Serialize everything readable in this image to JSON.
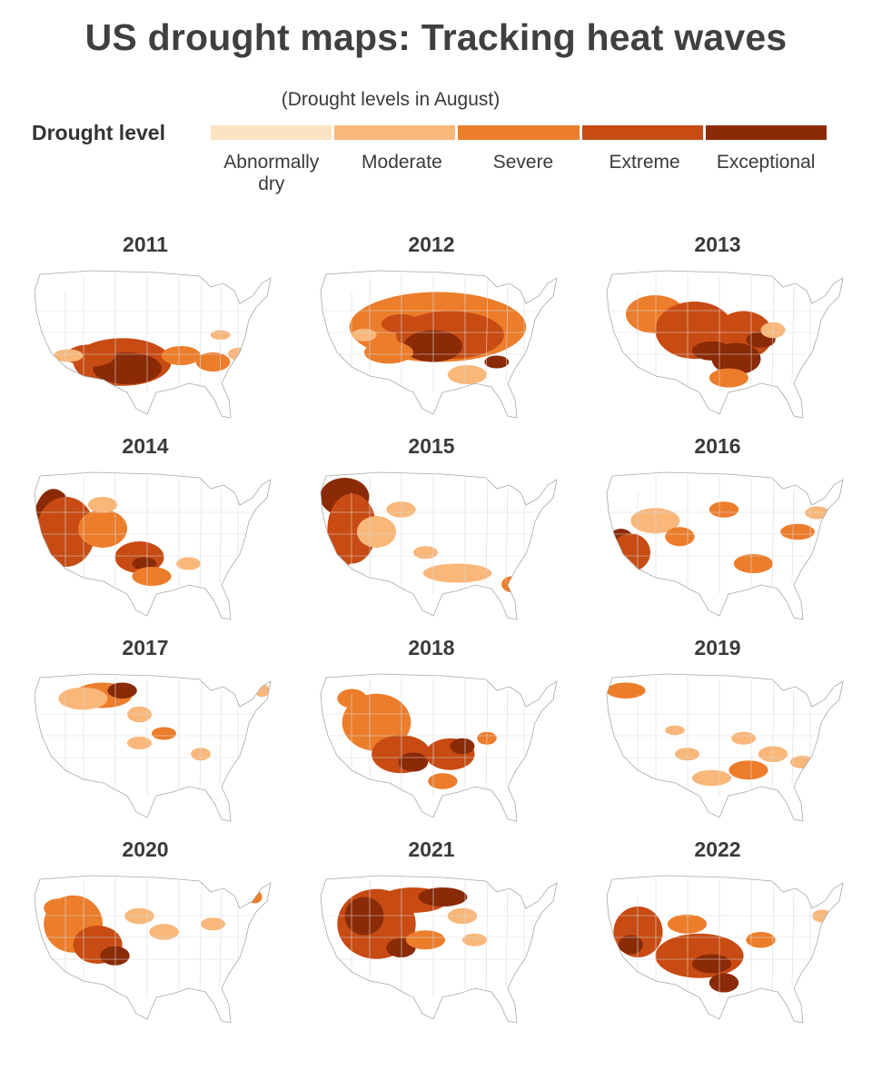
{
  "title": "US drought maps: Tracking heat waves",
  "subtitle": "(Drought levels in August)",
  "legend": {
    "label": "Drought level",
    "levels": [
      {
        "name": "Abnormally dry",
        "color": "#fde3c1"
      },
      {
        "name": "Moderate",
        "color": "#f9b77a"
      },
      {
        "name": "Severe",
        "color": "#ec7d2b"
      },
      {
        "name": "Extreme",
        "color": "#c74b13"
      },
      {
        "name": "Exceptional",
        "color": "#8a2a07"
      }
    ]
  },
  "maps": [
    {
      "year": "2011",
      "patches": [
        [
          0.38,
          0.62,
          0.2,
          0.15,
          3
        ],
        [
          0.4,
          0.66,
          0.14,
          0.1,
          4
        ],
        [
          0.25,
          0.58,
          0.1,
          0.07,
          3
        ],
        [
          0.62,
          0.58,
          0.08,
          0.06,
          2
        ],
        [
          0.75,
          0.62,
          0.07,
          0.06,
          2
        ],
        [
          0.86,
          0.57,
          0.05,
          0.04,
          1
        ],
        [
          0.78,
          0.45,
          0.04,
          0.03,
          1
        ],
        [
          0.16,
          0.58,
          0.06,
          0.04,
          1
        ]
      ]
    },
    {
      "year": "2012",
      "patches": [
        [
          0.5,
          0.4,
          0.36,
          0.22,
          2
        ],
        [
          0.55,
          0.45,
          0.22,
          0.15,
          3
        ],
        [
          0.48,
          0.52,
          0.12,
          0.1,
          4
        ],
        [
          0.35,
          0.38,
          0.08,
          0.06,
          3
        ],
        [
          0.3,
          0.56,
          0.1,
          0.07,
          2
        ],
        [
          0.74,
          0.62,
          0.05,
          0.04,
          4
        ],
        [
          0.62,
          0.7,
          0.08,
          0.06,
          1
        ],
        [
          0.2,
          0.45,
          0.05,
          0.04,
          1
        ]
      ]
    },
    {
      "year": "2013",
      "patches": [
        [
          0.22,
          0.32,
          0.12,
          0.12,
          2
        ],
        [
          0.38,
          0.42,
          0.16,
          0.18,
          3
        ],
        [
          0.58,
          0.45,
          0.12,
          0.15,
          3
        ],
        [
          0.55,
          0.6,
          0.1,
          0.1,
          4
        ],
        [
          0.45,
          0.55,
          0.08,
          0.06,
          4
        ],
        [
          0.65,
          0.48,
          0.06,
          0.05,
          4
        ],
        [
          0.52,
          0.72,
          0.08,
          0.06,
          2
        ],
        [
          0.7,
          0.42,
          0.05,
          0.05,
          1
        ]
      ]
    },
    {
      "year": "2014",
      "patches": [
        [
          0.1,
          0.35,
          0.08,
          0.2,
          4
        ],
        [
          0.15,
          0.42,
          0.12,
          0.22,
          3
        ],
        [
          0.3,
          0.4,
          0.1,
          0.12,
          2
        ],
        [
          0.45,
          0.58,
          0.1,
          0.1,
          3
        ],
        [
          0.47,
          0.62,
          0.05,
          0.04,
          4
        ],
        [
          0.5,
          0.7,
          0.08,
          0.06,
          2
        ],
        [
          0.65,
          0.62,
          0.05,
          0.04,
          1
        ],
        [
          0.3,
          0.25,
          0.06,
          0.05,
          1
        ]
      ]
    },
    {
      "year": "2015",
      "patches": [
        [
          0.12,
          0.2,
          0.1,
          0.12,
          4
        ],
        [
          0.15,
          0.4,
          0.1,
          0.22,
          3
        ],
        [
          0.1,
          0.55,
          0.06,
          0.1,
          3
        ],
        [
          0.25,
          0.42,
          0.08,
          0.1,
          1
        ],
        [
          0.35,
          0.28,
          0.06,
          0.05,
          1
        ],
        [
          0.58,
          0.68,
          0.14,
          0.06,
          1
        ],
        [
          0.8,
          0.75,
          0.04,
          0.05,
          2
        ],
        [
          0.45,
          0.55,
          0.05,
          0.04,
          1
        ]
      ]
    },
    {
      "year": "2016",
      "patches": [
        [
          0.08,
          0.5,
          0.06,
          0.1,
          4
        ],
        [
          0.12,
          0.55,
          0.08,
          0.12,
          3
        ],
        [
          0.22,
          0.35,
          0.1,
          0.08,
          1
        ],
        [
          0.32,
          0.45,
          0.06,
          0.06,
          2
        ],
        [
          0.5,
          0.28,
          0.06,
          0.05,
          2
        ],
        [
          0.62,
          0.62,
          0.08,
          0.06,
          2
        ],
        [
          0.8,
          0.42,
          0.07,
          0.05,
          2
        ],
        [
          0.88,
          0.3,
          0.05,
          0.04,
          1
        ]
      ]
    },
    {
      "year": "2017",
      "patches": [
        [
          0.3,
          0.18,
          0.12,
          0.08,
          2
        ],
        [
          0.38,
          0.15,
          0.06,
          0.05,
          4
        ],
        [
          0.22,
          0.2,
          0.1,
          0.07,
          1
        ],
        [
          0.45,
          0.3,
          0.05,
          0.05,
          1
        ],
        [
          0.55,
          0.42,
          0.05,
          0.04,
          2
        ],
        [
          0.45,
          0.48,
          0.05,
          0.04,
          1
        ],
        [
          0.7,
          0.55,
          0.04,
          0.04,
          1
        ],
        [
          0.95,
          0.15,
          0.03,
          0.04,
          1
        ]
      ]
    },
    {
      "year": "2018",
      "patches": [
        [
          0.25,
          0.35,
          0.14,
          0.18,
          2
        ],
        [
          0.35,
          0.55,
          0.12,
          0.12,
          3
        ],
        [
          0.4,
          0.6,
          0.06,
          0.06,
          4
        ],
        [
          0.55,
          0.55,
          0.1,
          0.1,
          3
        ],
        [
          0.6,
          0.5,
          0.05,
          0.05,
          4
        ],
        [
          0.15,
          0.2,
          0.06,
          0.06,
          2
        ],
        [
          0.7,
          0.45,
          0.04,
          0.04,
          2
        ],
        [
          0.52,
          0.72,
          0.06,
          0.05,
          2
        ]
      ]
    },
    {
      "year": "2019",
      "patches": [
        [
          0.1,
          0.15,
          0.08,
          0.05,
          2
        ],
        [
          0.45,
          0.7,
          0.08,
          0.05,
          1
        ],
        [
          0.6,
          0.65,
          0.08,
          0.06,
          2
        ],
        [
          0.7,
          0.55,
          0.06,
          0.05,
          1
        ],
        [
          0.35,
          0.55,
          0.05,
          0.04,
          1
        ],
        [
          0.82,
          0.6,
          0.05,
          0.04,
          1
        ],
        [
          0.58,
          0.45,
          0.05,
          0.04,
          1
        ],
        [
          0.3,
          0.4,
          0.04,
          0.03,
          1
        ]
      ]
    },
    {
      "year": "2020",
      "patches": [
        [
          0.18,
          0.35,
          0.12,
          0.18,
          2
        ],
        [
          0.28,
          0.48,
          0.1,
          0.12,
          3
        ],
        [
          0.35,
          0.55,
          0.06,
          0.06,
          4
        ],
        [
          0.12,
          0.25,
          0.06,
          0.06,
          2
        ],
        [
          0.45,
          0.3,
          0.06,
          0.05,
          1
        ],
        [
          0.55,
          0.4,
          0.06,
          0.05,
          1
        ],
        [
          0.75,
          0.35,
          0.05,
          0.04,
          1
        ],
        [
          0.92,
          0.18,
          0.03,
          0.04,
          2
        ]
      ]
    },
    {
      "year": "2021",
      "patches": [
        [
          0.25,
          0.35,
          0.16,
          0.22,
          3
        ],
        [
          0.2,
          0.3,
          0.08,
          0.12,
          4
        ],
        [
          0.4,
          0.2,
          0.14,
          0.08,
          3
        ],
        [
          0.52,
          0.18,
          0.1,
          0.06,
          4
        ],
        [
          0.35,
          0.5,
          0.06,
          0.06,
          4
        ],
        [
          0.45,
          0.45,
          0.08,
          0.06,
          2
        ],
        [
          0.6,
          0.3,
          0.06,
          0.05,
          1
        ],
        [
          0.65,
          0.45,
          0.05,
          0.04,
          1
        ]
      ]
    },
    {
      "year": "2022",
      "patches": [
        [
          0.15,
          0.4,
          0.1,
          0.16,
          3
        ],
        [
          0.12,
          0.48,
          0.05,
          0.06,
          4
        ],
        [
          0.4,
          0.55,
          0.18,
          0.14,
          3
        ],
        [
          0.45,
          0.6,
          0.08,
          0.06,
          4
        ],
        [
          0.5,
          0.72,
          0.06,
          0.06,
          4
        ],
        [
          0.35,
          0.35,
          0.08,
          0.06,
          2
        ],
        [
          0.65,
          0.45,
          0.06,
          0.05,
          2
        ],
        [
          0.9,
          0.3,
          0.04,
          0.04,
          1
        ]
      ]
    }
  ]
}
